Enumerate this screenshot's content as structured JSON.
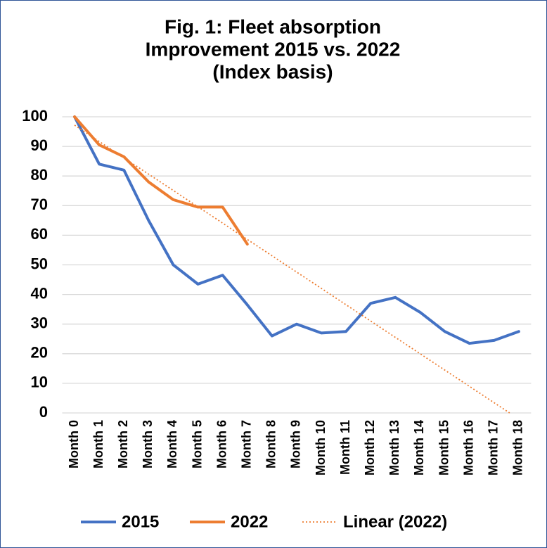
{
  "chart_data": {
    "type": "line",
    "title": [
      "Fig. 1: Fleet absorption",
      "Improvement 2015 vs. 2022",
      "(Index basis)"
    ],
    "categories": [
      "Month 0",
      "Month 1",
      "Month 2",
      "Month 3",
      "Month 4",
      "Month 5",
      "Month 6",
      "Month 7",
      "Month 8",
      "Month 9",
      "Month 10",
      "Month 11",
      "Month 12",
      "Month 13",
      "Month 14",
      "Month 15",
      "Month 16",
      "Month 17",
      "Month 18"
    ],
    "series": [
      {
        "name": "2015",
        "color": "#4472c4",
        "values": [
          100,
          84,
          82,
          65,
          50,
          43.5,
          46.5,
          36.5,
          26,
          30,
          27,
          27.5,
          37,
          39,
          34,
          27.5,
          23.5,
          24.5,
          27.5
        ]
      },
      {
        "name": "2022",
        "color": "#ed7d31",
        "values": [
          100,
          90.5,
          86.5,
          78,
          72,
          69.5,
          69.5,
          57,
          null,
          null,
          null,
          null,
          null,
          null,
          null,
          null,
          null,
          null,
          null
        ],
        "trendline": {
          "name": "Linear (2022)",
          "kind": "linear"
        }
      }
    ],
    "ylim": [
      0,
      100
    ],
    "yticks": [
      0,
      10,
      20,
      30,
      40,
      50,
      60,
      70,
      80,
      90,
      100
    ],
    "grid": true,
    "legend": "bottom"
  }
}
